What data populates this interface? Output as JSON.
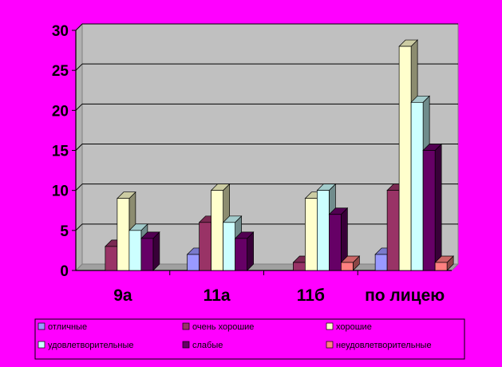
{
  "chart_data": {
    "type": "bar",
    "categories": [
      "9а",
      "11а",
      "11б",
      "по лицею"
    ],
    "series": [
      {
        "name": "отличные",
        "values": [
          0,
          2,
          0,
          2
        ],
        "color": "#9999ff"
      },
      {
        "name": "очень хорошие",
        "values": [
          3,
          6,
          1,
          10
        ],
        "color": "#993366"
      },
      {
        "name": "хорошие",
        "values": [
          9,
          10,
          9,
          28
        ],
        "color": "#ffffcc"
      },
      {
        "name": "удовлетворительные",
        "values": [
          5,
          6,
          10,
          21
        ],
        "color": "#ccffff"
      },
      {
        "name": "слабые",
        "values": [
          4,
          4,
          7,
          15
        ],
        "color": "#660066"
      },
      {
        "name": "неудовлетворительные",
        "values": [
          0,
          0,
          1,
          1
        ],
        "color": "#ff8080"
      }
    ],
    "ylim": [
      0,
      30
    ],
    "yticks": [
      "0",
      "5",
      "10",
      "15",
      "20",
      "25",
      "30"
    ],
    "grid": true,
    "legend_position": "bottom"
  }
}
